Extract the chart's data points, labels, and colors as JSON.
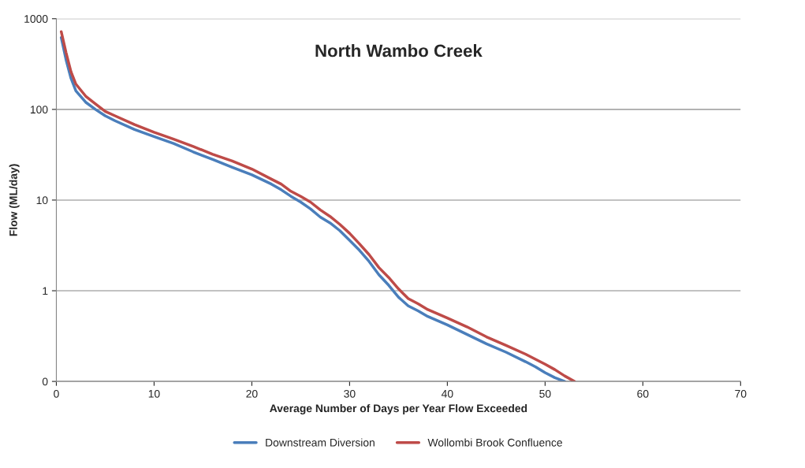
{
  "chart_data": {
    "type": "line",
    "title": "North Wambo Creek",
    "xlabel": "Average Number of Days per Year Flow Exceeded",
    "ylabel": "Flow (ML/day)",
    "log": "y",
    "xlim": [
      0,
      70
    ],
    "xticks": [
      0,
      10,
      20,
      30,
      40,
      50,
      60,
      70
    ],
    "ylim": [
      0.1,
      1000
    ],
    "yticks": [
      {
        "value": 0.1,
        "label": "0"
      },
      1,
      10,
      100,
      1000
    ],
    "grid": "y",
    "legend": "bottom",
    "marker": "none",
    "line_style": "solid",
    "series": [
      {
        "name": "Downstream Diversion",
        "color": "#4a7ebb",
        "x": [
          0.5,
          1,
          1.5,
          2,
          3,
          4,
          5,
          6,
          8,
          10,
          12,
          14,
          16,
          18,
          20,
          22,
          23,
          24,
          25,
          26,
          27,
          28,
          29,
          30,
          31,
          32,
          33,
          34,
          35,
          36,
          37,
          38,
          40,
          42,
          44,
          46,
          48,
          49,
          50,
          51,
          52
        ],
        "values": [
          620,
          350,
          220,
          160,
          120,
          100,
          85,
          75,
          60,
          50,
          42,
          34,
          28,
          23,
          19,
          15,
          13,
          11,
          9.5,
          8,
          6.5,
          5.6,
          4.6,
          3.6,
          2.8,
          2.1,
          1.5,
          1.15,
          0.85,
          0.68,
          0.6,
          0.52,
          0.42,
          0.33,
          0.26,
          0.21,
          0.165,
          0.145,
          0.125,
          0.11,
          0.1
        ]
      },
      {
        "name": "Wollombi Brook Confluence",
        "color": "#be4b48",
        "x": [
          0.5,
          1,
          1.5,
          2,
          3,
          4,
          5,
          6,
          8,
          10,
          12,
          14,
          16,
          18,
          20,
          22,
          23,
          24,
          25,
          26,
          27,
          28,
          29,
          30,
          31,
          32,
          33,
          34,
          35,
          36,
          37,
          38,
          40,
          42,
          44,
          46,
          48,
          50,
          51,
          52,
          53
        ],
        "values": [
          720,
          420,
          260,
          190,
          140,
          115,
          95,
          85,
          68,
          56,
          47,
          39,
          32,
          27,
          22,
          17,
          15,
          12.5,
          11,
          9.5,
          7.8,
          6.6,
          5.4,
          4.3,
          3.3,
          2.5,
          1.8,
          1.4,
          1.05,
          0.82,
          0.72,
          0.62,
          0.5,
          0.4,
          0.31,
          0.25,
          0.2,
          0.155,
          0.135,
          0.115,
          0.1
        ]
      }
    ]
  }
}
